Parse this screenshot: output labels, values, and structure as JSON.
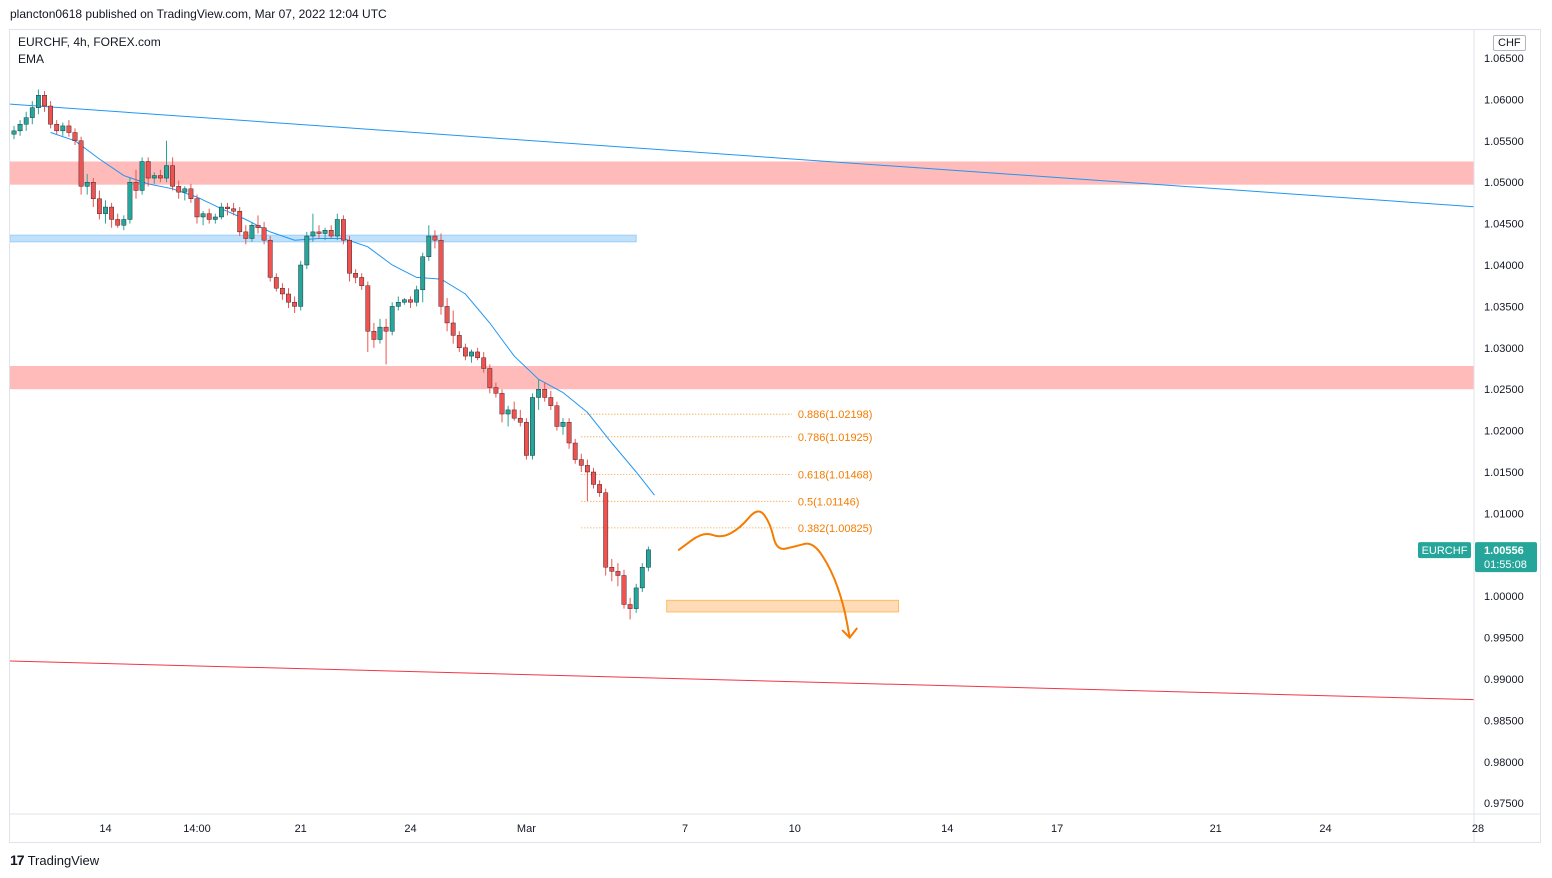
{
  "header": {
    "published": "plancton0618 published on TradingView.com, Mar 07, 2022 12:04 UTC",
    "symbol_line": "EURCHF, 4h, FOREX.com",
    "indicator": "EMA",
    "currency": "CHF"
  },
  "footer": {
    "brand": "TradingView",
    "logo": "17"
  },
  "last_price": {
    "symbol": "EURCHF",
    "price": "1.00556",
    "countdown": "01:55:08"
  },
  "colors": {
    "up": "#26a69a",
    "down": "#ef5350",
    "ema": "#2196f3",
    "fib": "#f57c00",
    "resistance_zone": "#ffb3b3",
    "support_zone": "#bbdefb",
    "target_zone": "#ffd8b0",
    "trend_blue": "#2196f3",
    "trend_red": "#f23645"
  },
  "chart_data": {
    "type": "candlestick",
    "symbol": "EURCHF",
    "timeframe": "4h",
    "ylim": [
      0.9725,
      1.0675
    ],
    "y_ticks": [
      "1.06500",
      "1.06000",
      "1.05500",
      "1.05000",
      "1.04500",
      "1.04000",
      "1.03500",
      "1.03000",
      "1.02500",
      "1.02000",
      "1.01500",
      "1.01000",
      "1.00500",
      "1.00000",
      "0.99500",
      "0.99000",
      "0.98500",
      "0.98000",
      "0.97500"
    ],
    "y_tick_values": [
      1.065,
      1.06,
      1.055,
      1.05,
      1.045,
      1.04,
      1.035,
      1.03,
      1.025,
      1.02,
      1.015,
      1.01,
      1.005,
      1.0,
      0.995,
      0.99,
      0.985,
      0.98,
      0.975
    ],
    "x_ticks": [
      {
        "label": "14",
        "bar": 15
      },
      {
        "label": "14:00",
        "bar": 30
      },
      {
        "label": "21",
        "bar": 47
      },
      {
        "label": "24",
        "bar": 65
      },
      {
        "label": "Mar",
        "bar": 84
      },
      {
        "label": "7",
        "bar": 110
      },
      {
        "label": "10",
        "bar": 128
      },
      {
        "label": "14",
        "bar": 153
      },
      {
        "label": "17",
        "bar": 171
      },
      {
        "label": "21",
        "bar": 197
      },
      {
        "label": "24",
        "bar": 215
      },
      {
        "label": "28",
        "bar": 240
      }
    ],
    "candles": [
      [
        1.0558,
        1.0568,
        1.0552,
        1.0562
      ],
      [
        1.0562,
        1.0575,
        1.0556,
        1.057
      ],
      [
        1.057,
        1.0585,
        1.0562,
        1.0578
      ],
      [
        1.0578,
        1.0598,
        1.057,
        1.059
      ],
      [
        1.059,
        1.0612,
        1.0582,
        1.0605
      ],
      [
        1.0605,
        1.061,
        1.0585,
        1.0592
      ],
      [
        1.0592,
        1.0598,
        1.0565,
        1.057
      ],
      [
        1.057,
        1.0575,
        1.0558,
        1.0562
      ],
      [
        1.0562,
        1.0572,
        1.0556,
        1.0568
      ],
      [
        1.0568,
        1.0575,
        1.0555,
        1.056
      ],
      [
        1.056,
        1.0565,
        1.0545,
        1.055
      ],
      [
        1.055,
        1.0555,
        1.0485,
        1.0495
      ],
      [
        1.0495,
        1.051,
        1.0485,
        1.05
      ],
      [
        1.05,
        1.0505,
        1.047,
        1.048
      ],
      [
        1.048,
        1.049,
        1.0455,
        1.0462
      ],
      [
        1.0462,
        1.0478,
        1.045,
        1.047
      ],
      [
        1.047,
        1.0475,
        1.0445,
        1.0455
      ],
      [
        1.0455,
        1.0462,
        1.0445,
        1.0448
      ],
      [
        1.0448,
        1.046,
        1.0442,
        1.0455
      ],
      [
        1.0455,
        1.0505,
        1.045,
        1.05
      ],
      [
        1.05,
        1.0515,
        1.048,
        1.049
      ],
      [
        1.049,
        1.053,
        1.0485,
        1.0525
      ],
      [
        1.0525,
        1.053,
        1.0495,
        1.0505
      ],
      [
        1.0505,
        1.0512,
        1.0498,
        1.0508
      ],
      [
        1.0508,
        1.0515,
        1.05,
        1.0505
      ],
      [
        1.0505,
        1.055,
        1.05,
        1.052
      ],
      [
        1.052,
        1.053,
        1.049,
        1.0495
      ],
      [
        1.0495,
        1.0502,
        1.048,
        1.0488
      ],
      [
        1.0488,
        1.0495,
        1.0478,
        1.0492
      ],
      [
        1.0492,
        1.0498,
        1.0475,
        1.048
      ],
      [
        1.048,
        1.0485,
        1.045,
        1.0458
      ],
      [
        1.0458,
        1.0465,
        1.0448,
        1.0462
      ],
      [
        1.0462,
        1.0468,
        1.045,
        1.0455
      ],
      [
        1.0455,
        1.0462,
        1.045,
        1.0458
      ],
      [
        1.0458,
        1.0475,
        1.0455,
        1.047
      ],
      [
        1.047,
        1.0475,
        1.046,
        1.0468
      ],
      [
        1.0468,
        1.0475,
        1.046,
        1.0465
      ],
      [
        1.0465,
        1.047,
        1.0435,
        1.044
      ],
      [
        1.044,
        1.0448,
        1.0425,
        1.0432
      ],
      [
        1.0432,
        1.0452,
        1.0428,
        1.0448
      ],
      [
        1.0448,
        1.046,
        1.0438,
        1.0445
      ],
      [
        1.0445,
        1.0452,
        1.0425,
        1.043
      ],
      [
        1.043,
        1.0435,
        1.038,
        1.0385
      ],
      [
        1.0385,
        1.039,
        1.0368,
        1.0372
      ],
      [
        1.0372,
        1.0378,
        1.0358,
        1.0365
      ],
      [
        1.0365,
        1.0372,
        1.0348,
        1.0355
      ],
      [
        1.0355,
        1.0362,
        1.0342,
        1.035
      ],
      [
        1.035,
        1.0405,
        1.0345,
        1.04
      ],
      [
        1.04,
        1.044,
        1.0395,
        1.0435
      ],
      [
        1.0435,
        1.0462,
        1.0428,
        1.044
      ],
      [
        1.044,
        1.0448,
        1.0432,
        1.0438
      ],
      [
        1.0438,
        1.0445,
        1.043,
        1.0442
      ],
      [
        1.0442,
        1.0448,
        1.0432,
        1.0435
      ],
      [
        1.0435,
        1.0462,
        1.043,
        1.0455
      ],
      [
        1.0455,
        1.046,
        1.0425,
        1.043
      ],
      [
        1.043,
        1.0435,
        1.038,
        1.039
      ],
      [
        1.039,
        1.0395,
        1.0378,
        1.0385
      ],
      [
        1.0385,
        1.039,
        1.037,
        1.0375
      ],
      [
        1.0375,
        1.038,
        1.0295,
        1.032
      ],
      [
        1.032,
        1.033,
        1.03,
        1.031
      ],
      [
        1.031,
        1.0335,
        1.0305,
        1.0325
      ],
      [
        1.0325,
        1.0335,
        1.028,
        1.032
      ],
      [
        1.032,
        1.0355,
        1.0315,
        1.035
      ],
      [
        1.035,
        1.0362,
        1.0345,
        1.0355
      ],
      [
        1.0355,
        1.036,
        1.0352,
        1.0358
      ],
      [
        1.0358,
        1.0362,
        1.0348,
        1.0355
      ],
      [
        1.0355,
        1.0375,
        1.035,
        1.037
      ],
      [
        1.037,
        1.0415,
        1.0355,
        1.041
      ],
      [
        1.041,
        1.0448,
        1.0405,
        1.0435
      ],
      [
        1.0435,
        1.0442,
        1.042,
        1.043
      ],
      [
        1.043,
        1.0438,
        1.034,
        1.035
      ],
      [
        1.035,
        1.036,
        1.032,
        1.033
      ],
      [
        1.033,
        1.0345,
        1.0305,
        1.0315
      ],
      [
        1.0315,
        1.032,
        1.0295,
        1.03
      ],
      [
        1.03,
        1.0305,
        1.0285,
        1.029
      ],
      [
        1.029,
        1.0298,
        1.0282,
        1.0295
      ],
      [
        1.0295,
        1.03,
        1.0285,
        1.0288
      ],
      [
        1.0288,
        1.0295,
        1.027,
        1.0275
      ],
      [
        1.0275,
        1.028,
        1.0245,
        1.0252
      ],
      [
        1.0252,
        1.0258,
        1.024,
        1.0245
      ],
      [
        1.0245,
        1.025,
        1.021,
        1.022
      ],
      [
        1.022,
        1.023,
        1.0205,
        1.0225
      ],
      [
        1.0225,
        1.0235,
        1.0212,
        1.0215
      ],
      [
        1.0215,
        1.0225,
        1.0205,
        1.021
      ],
      [
        1.021,
        1.0215,
        1.0165,
        1.017
      ],
      [
        1.017,
        1.0245,
        1.0165,
        1.024
      ],
      [
        1.024,
        1.0262,
        1.0225,
        1.025
      ],
      [
        1.025,
        1.0258,
        1.0235,
        1.024
      ],
      [
        1.024,
        1.0248,
        1.0225,
        1.023
      ],
      [
        1.023,
        1.0235,
        1.02,
        1.0205
      ],
      [
        1.0205,
        1.0215,
        1.0195,
        1.021
      ],
      [
        1.021,
        1.0215,
        1.0178,
        1.0185
      ],
      [
        1.0185,
        1.019,
        1.016,
        1.0165
      ],
      [
        1.0165,
        1.0172,
        1.015,
        1.0158
      ],
      [
        1.0158,
        1.0165,
        1.0115,
        1.015
      ],
      [
        1.015,
        1.0155,
        1.013,
        1.0135
      ],
      [
        1.0135,
        1.014,
        1.012,
        1.0125
      ],
      [
        1.0125,
        1.013,
        1.0025,
        1.0035
      ],
      [
        1.0035,
        1.0045,
        1.0018,
        1.003
      ],
      [
        1.003,
        1.004,
        1.0012,
        1.0025
      ],
      [
        1.0025,
        1.0032,
        0.9985,
        0.999
      ],
      [
        0.999,
        0.9998,
        0.9972,
        0.9985
      ],
      [
        0.9985,
        1.0015,
        0.998,
        1.001
      ],
      [
        1.001,
        1.004,
        1.0005,
        1.0035
      ],
      [
        1.0035,
        1.006,
        1.003,
        1.0056
      ]
    ],
    "ema": [
      [
        6,
        1.056
      ],
      [
        10,
        1.055
      ],
      [
        14,
        1.0528
      ],
      [
        18,
        1.0508
      ],
      [
        22,
        1.0498
      ],
      [
        26,
        1.0492
      ],
      [
        30,
        1.0482
      ],
      [
        34,
        1.0468
      ],
      [
        38,
        1.0455
      ],
      [
        42,
        1.044
      ],
      [
        46,
        1.043
      ],
      [
        50,
        1.0432
      ],
      [
        54,
        1.0432
      ],
      [
        58,
        1.0422
      ],
      [
        62,
        1.04
      ],
      [
        66,
        1.0385
      ],
      [
        70,
        1.0383
      ],
      [
        74,
        1.0365
      ],
      [
        78,
        1.033
      ],
      [
        82,
        1.029
      ],
      [
        86,
        1.0262
      ],
      [
        90,
        1.0246
      ],
      [
        94,
        1.0222
      ],
      [
        98,
        1.0185
      ],
      [
        102,
        1.015
      ],
      [
        105,
        1.0122
      ]
    ],
    "zones": [
      {
        "name": "resistance-zone-upper",
        "low": 1.0497,
        "high": 1.0525
      },
      {
        "name": "resistance-zone-lower",
        "low": 1.025,
        "high": 1.0278
      },
      {
        "name": "support-zone-blue",
        "low": 1.0428,
        "high": 1.0436,
        "bar_end": 102
      },
      {
        "name": "target-zone",
        "low": 0.9981,
        "high": 0.9995,
        "bar_start": 107,
        "bar_end": 145
      }
    ],
    "trendlines": [
      {
        "name": "descending-blue-trendline",
        "from": [
          -2,
          1.0595
        ],
        "to": [
          240,
          1.047
        ]
      },
      {
        "name": "descending-red-trendline",
        "from": [
          -2,
          0.9922
        ],
        "to": [
          240,
          0.9875
        ]
      }
    ],
    "fib_levels": [
      {
        "label": "0.886(1.02198)",
        "value": 1.02198
      },
      {
        "label": "0.786(1.01925)",
        "value": 1.01925
      },
      {
        "label": "0.618(1.01468)",
        "value": 1.01468
      },
      {
        "label": "0.5(1.01146)",
        "value": 1.01146
      },
      {
        "label": "0.382(1.00825)",
        "value": 1.00825
      }
    ],
    "projection": [
      [
        109,
        1.0056
      ],
      [
        113,
        1.0078
      ],
      [
        116,
        1.007
      ],
      [
        119,
        1.0082
      ],
      [
        122,
        1.0108
      ],
      [
        124,
        1.0088
      ],
      [
        125,
        1.0055
      ],
      [
        128,
        1.006
      ],
      [
        131,
        1.0066
      ],
      [
        134,
        1.0032
      ],
      [
        136,
        0.999
      ],
      [
        137,
        0.995
      ]
    ]
  }
}
